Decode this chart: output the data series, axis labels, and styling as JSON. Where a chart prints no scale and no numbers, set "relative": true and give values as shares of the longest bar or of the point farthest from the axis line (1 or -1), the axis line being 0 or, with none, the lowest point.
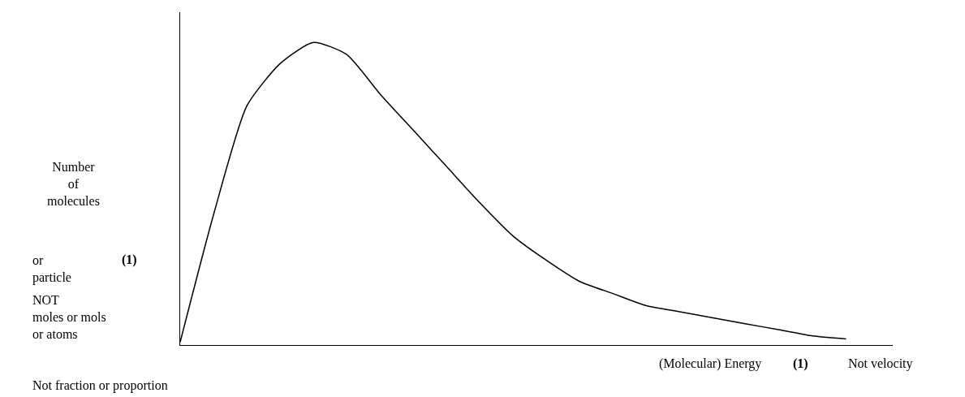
{
  "chart_data": {
    "type": "line",
    "relative": true,
    "xlabel": "(Molecular) Energy",
    "color": "#000000",
    "marker": "none",
    "grid": false,
    "categories": [
      null,
      null,
      null,
      null,
      null,
      null,
      null,
      null,
      null,
      null,
      null,
      null,
      null,
      null,
      null,
      null,
      null,
      null,
      null,
      null,
      null,
      null
    ],
    "values": [
      0.01,
      0.43,
      0.79,
      0.93,
      1.0,
      0.96,
      0.83,
      0.71,
      0.59,
      0.47,
      0.36,
      0.28,
      0.21,
      0.17,
      0.13,
      0.11,
      0.09,
      0.07,
      0.05,
      0.03,
      0.02,
      null
    ],
    "annotations": [
      "Number of molecules",
      "or particle",
      "NOT moles or mols or atoms",
      "Not fraction or proportion",
      "(1)",
      "(1)",
      "Not velocity"
    ]
  }
}
